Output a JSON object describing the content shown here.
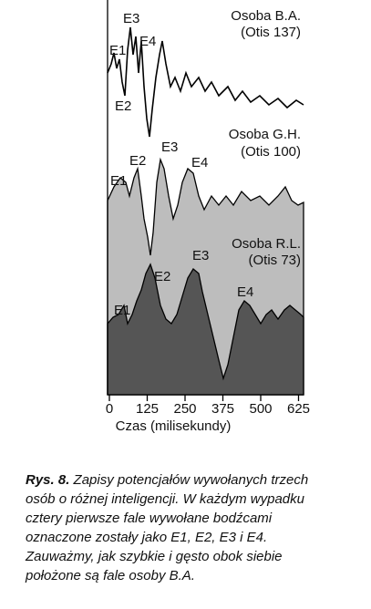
{
  "figure": {
    "traces": [
      {
        "name": "Osoba B.A.",
        "score": "(Otis 137)",
        "waves": [
          "E1",
          "E2",
          "E3",
          "E4"
        ]
      },
      {
        "name": "Osoba G.H.",
        "score": "(Otis 100)",
        "waves": [
          "E1",
          "E2",
          "E3",
          "E4"
        ]
      },
      {
        "name": "Osoba R.L.",
        "score": "(Otis 73)",
        "waves": [
          "E1",
          "E2",
          "E3",
          "E4"
        ]
      }
    ],
    "x_axis": {
      "ticks": [
        0,
        125,
        250,
        375,
        500,
        625
      ],
      "label": "Czas (milisekundy)"
    }
  },
  "caption": {
    "label": "Rys. 8.",
    "lines": [
      "Zapisy potencjałów wywołanych trzech",
      "osób o różnej inteligencji. W każdym wypadku",
      "cztery pierwsze fale wywołane bodźcami",
      "oznaczone zostały jako E1, E2, E3 i E4.",
      "Zauważmy, jak szybkie i gęsto obok siebie",
      "położone są fale osoby B.A."
    ]
  }
}
